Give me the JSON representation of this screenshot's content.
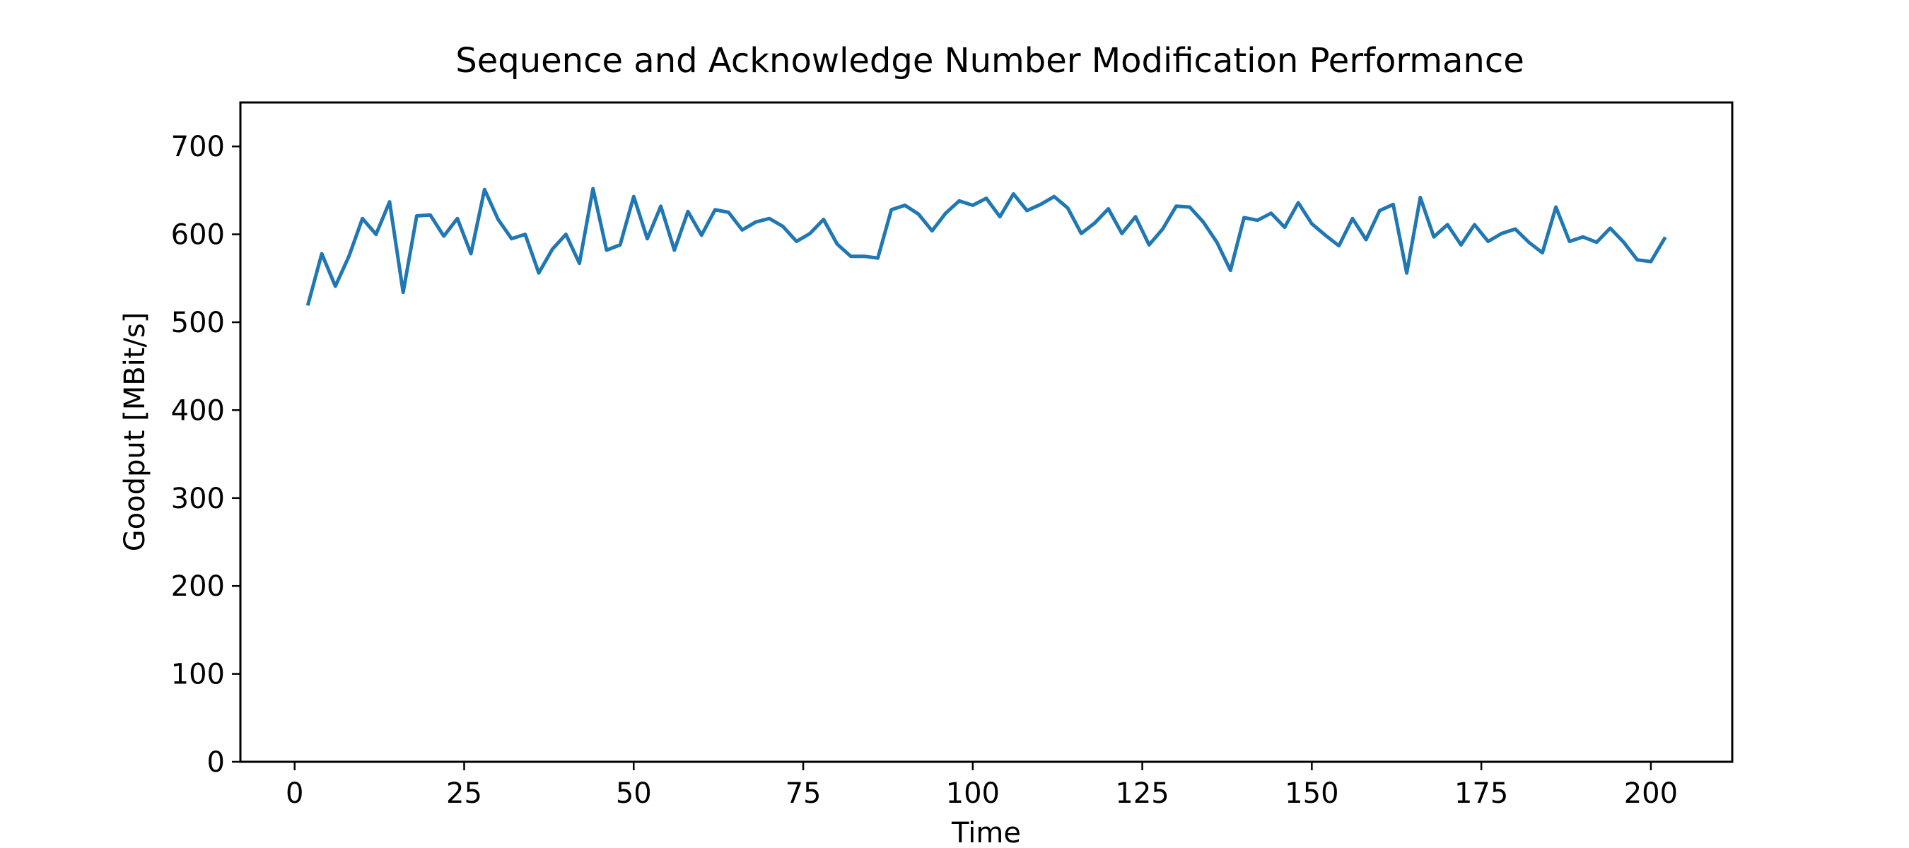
{
  "chart_data": {
    "type": "line",
    "title": "Sequence and Acknowledge Number Modification Performance",
    "xlabel": "Time",
    "ylabel": "Goodput [MBit/s]",
    "xlim": [
      -8,
      212
    ],
    "ylim": [
      0,
      750
    ],
    "xticks": [
      0,
      25,
      50,
      75,
      100,
      125,
      150,
      175,
      200
    ],
    "yticks": [
      0,
      100,
      200,
      300,
      400,
      500,
      600,
      700
    ],
    "grid": false,
    "legend": "none",
    "series": [
      {
        "color": "#1f77b4",
        "x": [
          2,
          4,
          6,
          8,
          10,
          12,
          14,
          16,
          18,
          20,
          22,
          24,
          26,
          28,
          30,
          32,
          34,
          36,
          38,
          40,
          42,
          44,
          46,
          48,
          50,
          52,
          54,
          56,
          58,
          60,
          62,
          64,
          66,
          68,
          70,
          72,
          74,
          76,
          78,
          80,
          82,
          84,
          86,
          88,
          90,
          92,
          94,
          96,
          98,
          100,
          102,
          104,
          106,
          108,
          110,
          112,
          114,
          116,
          118,
          120,
          122,
          124,
          126,
          128,
          130,
          132,
          134,
          136,
          138,
          140,
          142,
          144,
          146,
          148,
          150,
          152,
          154,
          156,
          158,
          160,
          162,
          164,
          166,
          168,
          170,
          172,
          174,
          176,
          178,
          180,
          182,
          184,
          186,
          188,
          190,
          192,
          194,
          196,
          198,
          200,
          202
        ],
        "values": [
          521,
          578,
          541,
          575,
          618,
          600,
          637,
          534,
          621,
          622,
          598,
          618,
          578,
          651,
          617,
          595,
          600,
          556,
          583,
          600,
          567,
          652,
          582,
          588,
          643,
          595,
          632,
          582,
          626,
          599,
          628,
          625,
          605,
          614,
          618,
          609,
          592,
          601,
          617,
          589,
          575,
          575,
          573,
          628,
          633,
          623,
          604,
          624,
          638,
          633,
          641,
          620,
          646,
          627,
          634,
          643,
          630,
          601,
          613,
          629,
          601,
          620,
          588,
          606,
          632,
          631,
          614,
          591,
          559,
          619,
          616,
          624,
          608,
          636,
          612,
          599,
          587,
          618,
          594,
          627,
          634,
          556,
          642,
          597,
          611,
          588,
          611,
          592,
          601,
          606,
          591,
          579,
          631,
          592,
          597,
          591,
          607,
          591,
          571,
          569,
          595
        ]
      }
    ]
  }
}
